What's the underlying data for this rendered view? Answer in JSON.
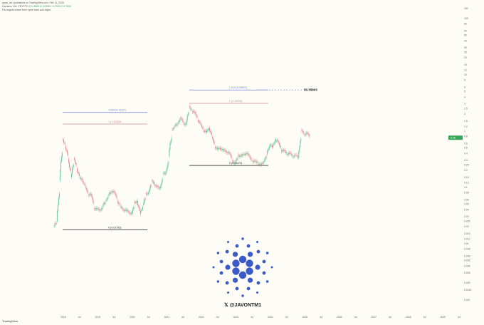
{
  "header": {
    "published": "javon_tm1 published on TradingView.com, Feb 11, 2025",
    "symbol": "Cardano, 1M, CRYPTO",
    "ohlc": "O 0.9500 H 1.0200 L 0.7000 C 0.7600",
    "note": "Fib targets drawn from cycle lows and highs"
  },
  "footer": {
    "brand": "TradingView"
  },
  "watermark": {
    "handle": "@JAVONTM1",
    "x_icon": "x-logo-icon",
    "logo": "cardano-logo"
  },
  "colors": {
    "up": "#4cc08a",
    "down": "#e57b86",
    "fib_ext": "#6f7fe0",
    "fib_one": "#c98d8d",
    "fib_zero": "#222222",
    "logo": "#3a5bc7",
    "price_tag": "#3aa65a",
    "background": "#fefcf6"
  },
  "chart_data": {
    "type": "candlestick",
    "yscale": "log",
    "ylim": [
      0.001,
      180
    ],
    "xlim": [
      "2017-09",
      "2029-09"
    ],
    "x_ticks": [
      "2018",
      "Jul",
      "2019",
      "Jul",
      "2020",
      "Jul",
      "2021",
      "Jul",
      "2022",
      "Jul",
      "2023",
      "Jul",
      "2024",
      "Jul",
      "2025",
      "Jul",
      "2026",
      "Jul",
      "2027",
      "Jul",
      "2028",
      "Jul",
      "2029",
      "Jul"
    ],
    "y_ticks": [
      150,
      100,
      80,
      60,
      50,
      40,
      30,
      25,
      20,
      15,
      12,
      10,
      8,
      6,
      5,
      4,
      3,
      2.5,
      2,
      1.5,
      1.2,
      1,
      0.8,
      0.6,
      0.5,
      0.4,
      0.3,
      0.25,
      0.2,
      0.15,
      0.12,
      0.1,
      0.08,
      0.06,
      0.05,
      0.04,
      0.03,
      0.025,
      0.02,
      0.015,
      0.012,
      0.01,
      0.008,
      0.006,
      0.005,
      0.004,
      0.003,
      0.002,
      0.0015,
      0.001
    ],
    "start": "2017-10",
    "closes": [
      0.025,
      0.13,
      0.72,
      0.55,
      0.32,
      0.15,
      0.33,
      0.22,
      0.145,
      0.135,
      0.1,
      0.075,
      0.076,
      0.043,
      0.041,
      0.039,
      0.045,
      0.058,
      0.071,
      0.085,
      0.085,
      0.058,
      0.047,
      0.039,
      0.04,
      0.036,
      0.033,
      0.052,
      0.057,
      0.033,
      0.049,
      0.073,
      0.08,
      0.13,
      0.114,
      0.1,
      0.095,
      0.17,
      0.18,
      0.35,
      1.07,
      1.2,
      1.33,
      1.75,
      1.37,
      1.3,
      2.77,
      2.22,
      2.17,
      1.58,
      1.31,
      1.04,
      0.95,
      1.14,
      0.78,
      0.53,
      0.47,
      0.5,
      0.45,
      0.43,
      0.41,
      0.31,
      0.25,
      0.38,
      0.35,
      0.39,
      0.4,
      0.36,
      0.28,
      0.3,
      0.26,
      0.25,
      0.29,
      0.38,
      0.59,
      0.51,
      0.72,
      0.64,
      0.46,
      0.45,
      0.39,
      0.41,
      0.35,
      0.38,
      0.33,
      1.05,
      0.85,
      0.95,
      0.76
    ],
    "current_price": "0.76",
    "fib_sets": [
      {
        "from": "2018-01",
        "to": "2020-04",
        "levels": [
          {
            "ratio": "1.618",
            "price": 2.14,
            "label": "1.618 (2.14107)",
            "kind": "ext"
          },
          {
            "ratio": "1",
            "price": 1.33,
            "label": "1 (1.33193)",
            "kind": "one"
          },
          {
            "ratio": "0",
            "price": 0.0175,
            "label": "0 (0.01753)",
            "kind": "zero"
          }
        ]
      },
      {
        "from": "2021-09",
        "to": "2023-10",
        "levels": [
          {
            "ratio": "1.618",
            "price": 5.35803,
            "label": "1.618 (5.35803)",
            "kind": "ext"
          },
          {
            "ratio": "1",
            "price": 3.1,
            "label": "1 (3.10000)",
            "kind": "one"
          },
          {
            "ratio": "0",
            "price": 0.24472,
            "label": "0 (0.24472)",
            "kind": "zero"
          }
        ]
      }
    ],
    "target": {
      "price": 5.35803,
      "label": "$5.35803"
    }
  }
}
